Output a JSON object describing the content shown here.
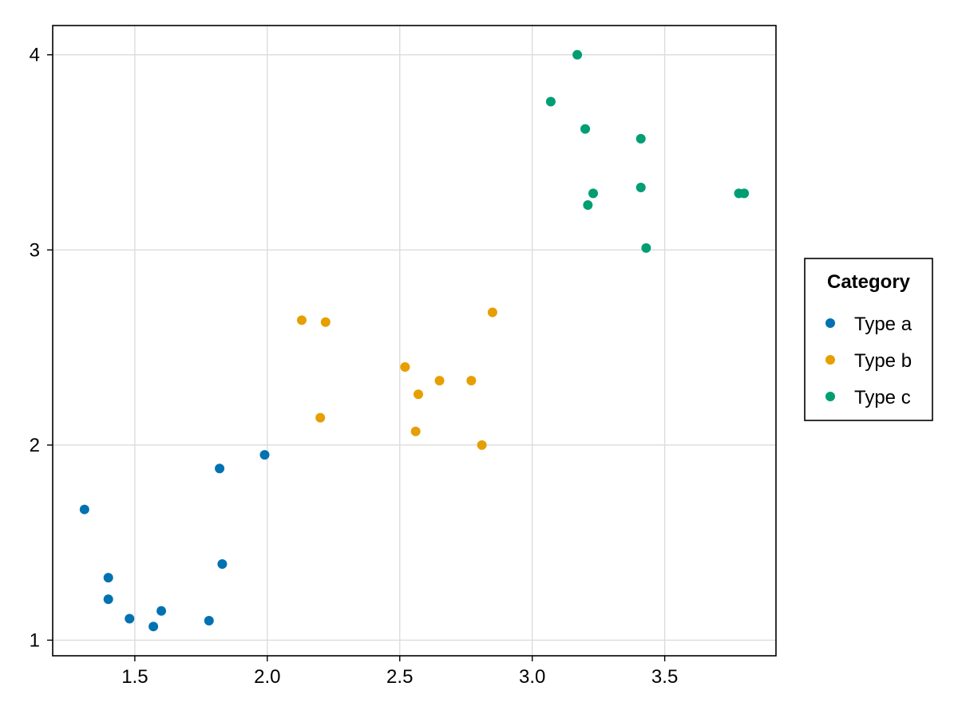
{
  "chart_data": {
    "type": "scatter",
    "title": "",
    "xlabel": "",
    "ylabel": "",
    "xlim": [
      1.19,
      3.92
    ],
    "ylim": [
      0.92,
      4.15
    ],
    "xticks": [
      1.5,
      2.0,
      2.5,
      3.0,
      3.5
    ],
    "xtick_labels": [
      "1.5",
      "2.0",
      "2.5",
      "3.0",
      "3.5"
    ],
    "yticks": [
      1,
      2,
      3,
      4
    ],
    "ytick_labels": [
      "1",
      "2",
      "3",
      "4"
    ],
    "grid": true,
    "legend": {
      "title": "Category",
      "placement": "right"
    },
    "series": [
      {
        "name": "Type a",
        "color": "#0072B2",
        "points": [
          [
            1.31,
            1.67
          ],
          [
            1.4,
            1.32
          ],
          [
            1.4,
            1.21
          ],
          [
            1.48,
            1.11
          ],
          [
            1.57,
            1.07
          ],
          [
            1.6,
            1.15
          ],
          [
            1.78,
            1.1
          ],
          [
            1.82,
            1.88
          ],
          [
            1.83,
            1.39
          ],
          [
            1.99,
            1.95
          ]
        ]
      },
      {
        "name": "Type b",
        "color": "#E69F00",
        "points": [
          [
            2.13,
            2.64
          ],
          [
            2.2,
            2.14
          ],
          [
            2.22,
            2.63
          ],
          [
            2.52,
            2.4
          ],
          [
            2.56,
            2.07
          ],
          [
            2.57,
            2.26
          ],
          [
            2.65,
            2.33
          ],
          [
            2.77,
            2.33
          ],
          [
            2.81,
            2.0
          ],
          [
            2.85,
            2.68
          ]
        ]
      },
      {
        "name": "Type c",
        "color": "#009E73",
        "points": [
          [
            3.07,
            3.76
          ],
          [
            3.17,
            4.0
          ],
          [
            3.2,
            3.62
          ],
          [
            3.21,
            3.23
          ],
          [
            3.23,
            3.29
          ],
          [
            3.41,
            3.57
          ],
          [
            3.41,
            3.32
          ],
          [
            3.43,
            3.01
          ],
          [
            3.78,
            3.29
          ],
          [
            3.8,
            3.29
          ]
        ]
      }
    ]
  }
}
